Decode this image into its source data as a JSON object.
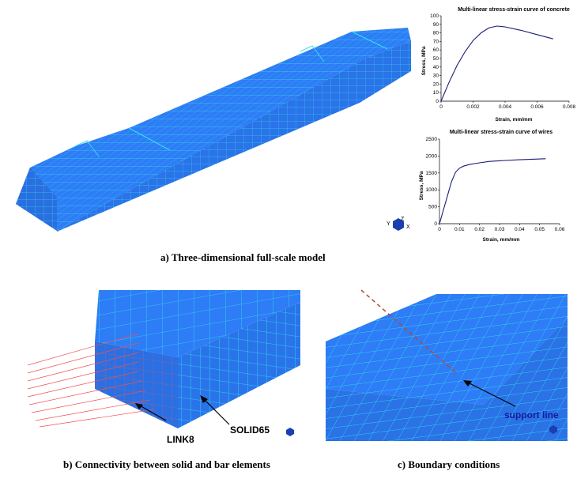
{
  "captions": {
    "a": "a) Three-dimensional full-scale model",
    "b": "b) Connectivity between solid and bar elements",
    "c": "c) Boundary conditions"
  },
  "labels": {
    "link8": "LINK8",
    "solid65": "SOLID65",
    "support_line": "support line"
  },
  "triad": {
    "y": "Y",
    "z": "Z",
    "x": "X"
  },
  "colors": {
    "mesh_fill": "#2e7cf6",
    "mesh_line": "#33e0f0",
    "bars": "#f05050",
    "support": "#b84a2e",
    "curve": "#1a1a7a"
  },
  "chart_data": [
    {
      "type": "line",
      "title": "Multi-linear stress-strain curve of concrete",
      "xlabel": "Strain, mm/mm",
      "ylabel": "Stress, MPa",
      "xlim": [
        0,
        0.008
      ],
      "ylim": [
        0,
        100
      ],
      "xticks": [
        "0",
        "0.002",
        "0.004",
        "0.006",
        "0.008"
      ],
      "yticks": [
        "0",
        "10",
        "20",
        "30",
        "40",
        "50",
        "60",
        "70",
        "80",
        "90",
        "100"
      ],
      "x": [
        0,
        0.0005,
        0.001,
        0.0015,
        0.002,
        0.0025,
        0.003,
        0.0035,
        0.004,
        0.005,
        0.006,
        0.007
      ],
      "y": [
        0,
        22,
        42,
        58,
        71,
        80,
        86,
        88,
        87,
        83,
        78,
        73
      ],
      "grid": false
    },
    {
      "type": "line",
      "title": "Multi-linear stress-strain curve of wires",
      "xlabel": "Strain, mm/mm",
      "ylabel": "Stress, MPa",
      "xlim": [
        0,
        0.06
      ],
      "ylim": [
        0,
        2500
      ],
      "xticks": [
        "0",
        "0.01",
        "0.02",
        "0.03",
        "0.04",
        "0.05",
        "0.06"
      ],
      "yticks": [
        "0",
        "500",
        "1000",
        "1500",
        "2000",
        "2500"
      ],
      "x": [
        0,
        0.003,
        0.006,
        0.008,
        0.01,
        0.012,
        0.015,
        0.02,
        0.025,
        0.03,
        0.04,
        0.053
      ],
      "y": [
        0,
        620,
        1240,
        1520,
        1640,
        1700,
        1750,
        1800,
        1840,
        1860,
        1890,
        1920
      ],
      "grid": false
    }
  ]
}
